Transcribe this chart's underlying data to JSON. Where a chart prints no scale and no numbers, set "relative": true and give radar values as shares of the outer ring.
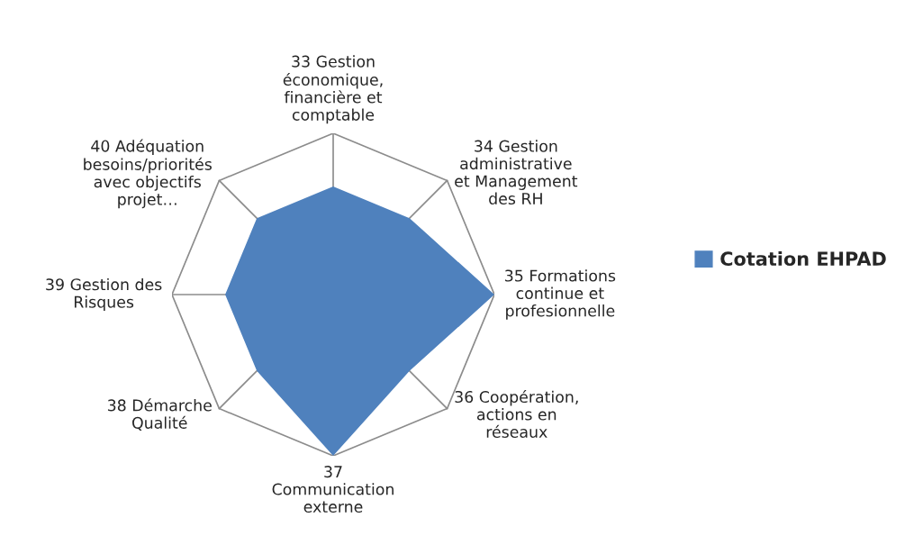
{
  "chart_data": {
    "type": "radar",
    "relative": true,
    "grid": true,
    "legend": "right",
    "categories": [
      "33 Gestion économique, financière et comptable",
      "34 Gestion administrative et Management des RH",
      "35 Formations continue et profesionnelle",
      "36 Coopération, actions en réseaux",
      "37 Communication externe",
      "38 Démarche Qualité",
      "39 Gestion des Risques",
      "40 Adéquation besoins/priorités avec objectifs projet…"
    ],
    "series": [
      {
        "name": "Cotation EHPAD",
        "color": "#4f81bd",
        "values": [
          0.67,
          0.67,
          1,
          0.67,
          1,
          0.67,
          0.67,
          0.67
        ]
      }
    ]
  }
}
